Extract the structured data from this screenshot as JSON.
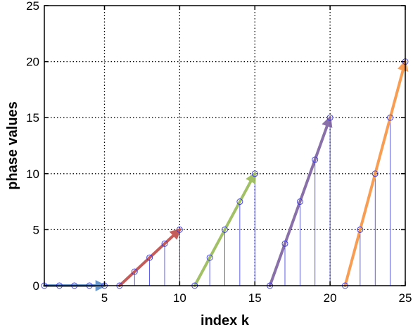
{
  "chart_data": {
    "type": "line",
    "xlabel": "index k",
    "ylabel": "phase values",
    "xlim": [
      1,
      25
    ],
    "ylim": [
      0,
      25
    ],
    "grid": true,
    "grid_style": "dotted",
    "xticks": [
      5,
      10,
      15,
      20,
      25
    ],
    "yticks": [
      0,
      5,
      10,
      15,
      20,
      25
    ],
    "stem_color": "#3333dd",
    "x": [
      1,
      2,
      3,
      4,
      5,
      6,
      7,
      8,
      9,
      10,
      11,
      12,
      13,
      14,
      15,
      16,
      17,
      18,
      19,
      20,
      21,
      22,
      23,
      24,
      25
    ],
    "values": [
      0,
      0,
      0,
      0,
      0,
      0,
      1.25,
      2.5,
      3.75,
      5,
      0,
      2.5,
      5,
      7.5,
      10,
      0,
      3.75,
      7.5,
      11.25,
      15,
      0,
      5,
      10,
      15,
      20
    ],
    "arrows": [
      {
        "from": [
          1,
          0
        ],
        "to": [
          5,
          0
        ],
        "color": "#5b8ec8"
      },
      {
        "from": [
          6,
          0
        ],
        "to": [
          10,
          5
        ],
        "color": "#c0504d"
      },
      {
        "from": [
          11,
          0
        ],
        "to": [
          15,
          10
        ],
        "color": "#9bbb59"
      },
      {
        "from": [
          16,
          0
        ],
        "to": [
          20,
          15
        ],
        "color": "#8064a2"
      },
      {
        "from": [
          21,
          0
        ],
        "to": [
          25,
          20
        ],
        "color": "#f79646"
      }
    ]
  }
}
